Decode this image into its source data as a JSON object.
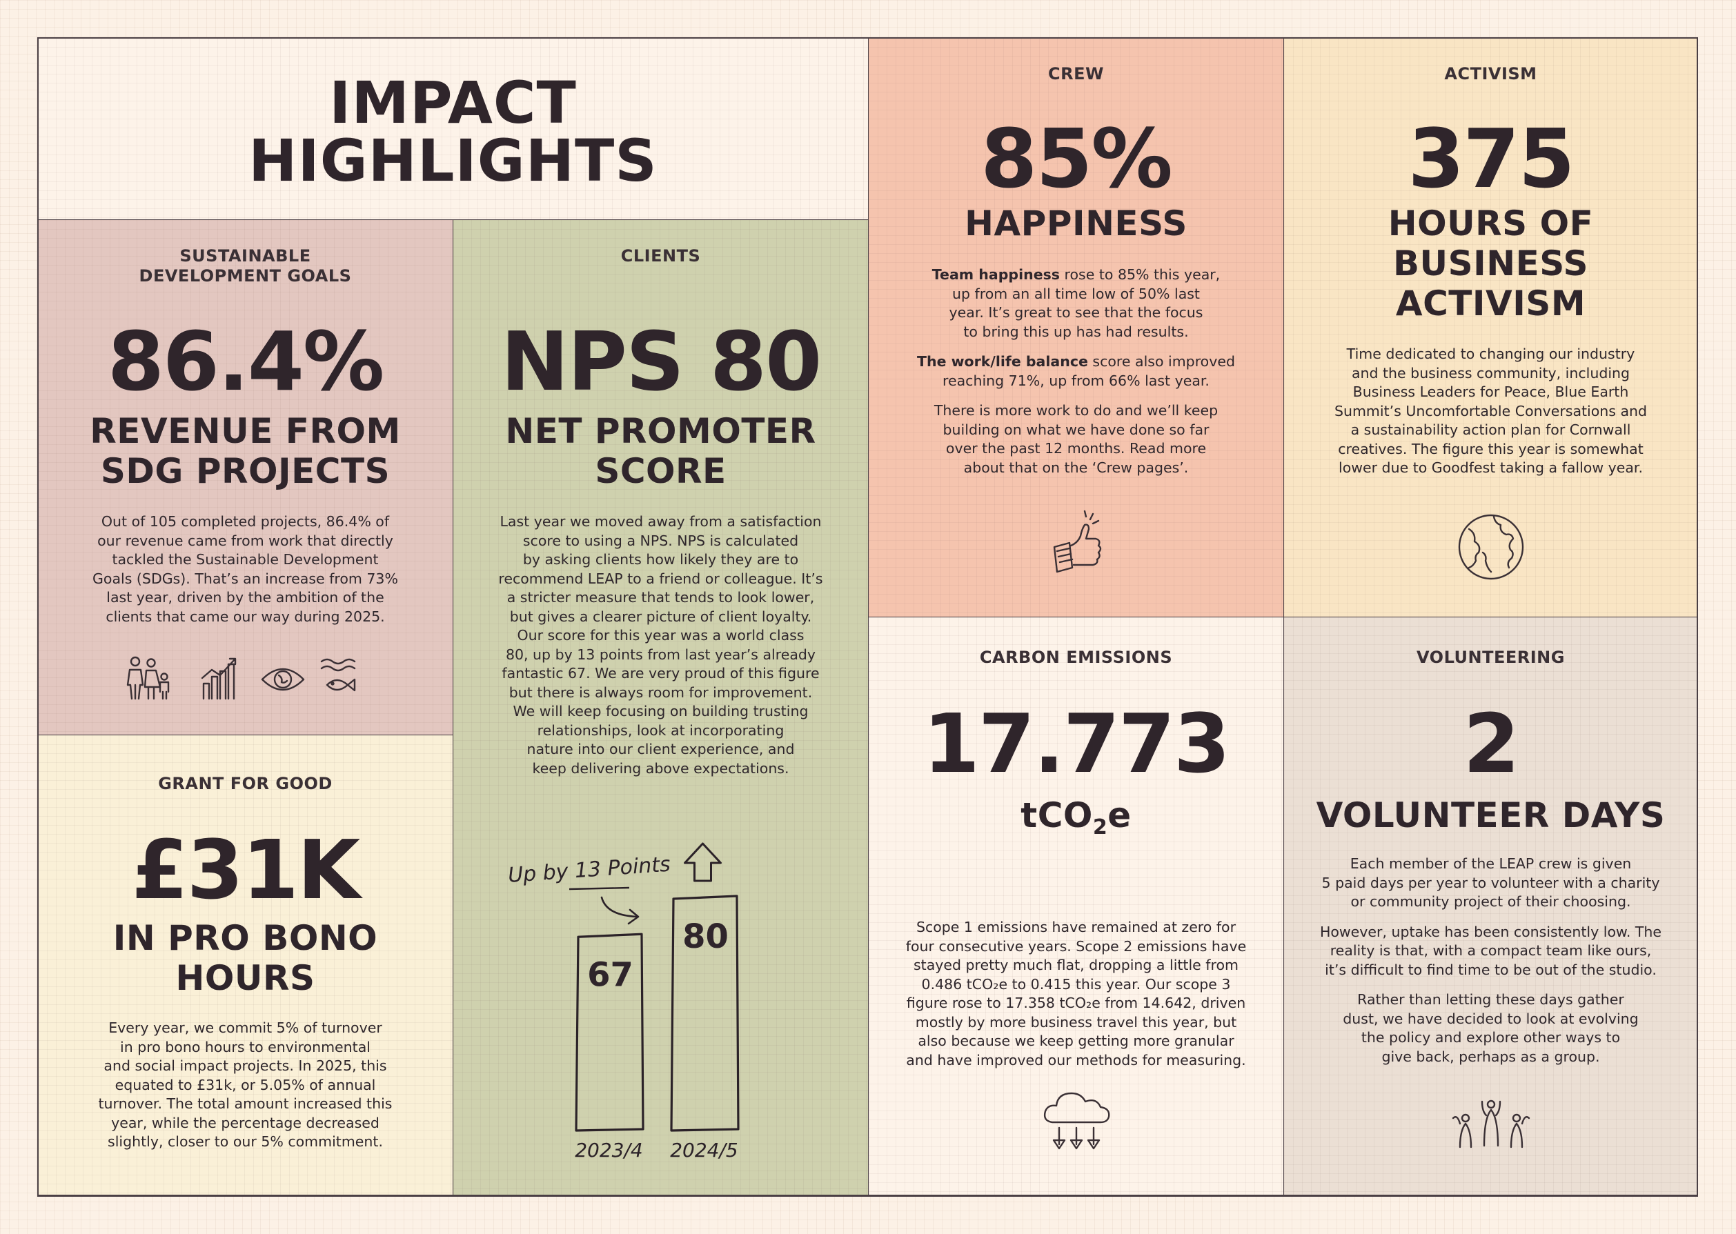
{
  "title": {
    "line1": "IMPACT",
    "line2": "HIGHLIGHTS"
  },
  "sdg": {
    "label_line1": "SUSTAINABLE",
    "label_line2": "DEVELOPMENT GOALS",
    "value": "86.4%",
    "subtitle_line1": "REVENUE FROM",
    "subtitle_line2": "SDG PROJECTS",
    "body": [
      "Out of 105 completed projects, 86.4% of",
      "our revenue came from work that directly",
      "tackled the Sustainable Development",
      "Goals (SDGs). That’s an increase from 73%",
      "last year, driven by the ambition of the",
      "clients that came our way during 2025."
    ],
    "icons": [
      "family-icon",
      "growth-chart-icon",
      "eye-globe-icon",
      "water-fish-icon"
    ]
  },
  "grant": {
    "label": "GRANT FOR GOOD",
    "value": "£31K",
    "subtitle_line1": "IN PRO BONO",
    "subtitle_line2": "HOURS",
    "body": [
      "Every year, we commit 5% of turnover",
      "in pro bono hours to environmental",
      "and social impact projects. In 2025, this",
      "equated to £31k, or 5.05% of annual",
      "turnover. The total amount increased this",
      "year, while the percentage decreased",
      "slightly, closer to our 5% commitment."
    ]
  },
  "clients": {
    "label": "CLIENTS",
    "value": "NPS 80",
    "subtitle_line1": "NET PROMOTER",
    "subtitle_line2": "SCORE",
    "body": [
      "Last year we moved away from a satisfaction",
      "score to using a NPS. NPS is calculated",
      "by asking clients how likely they are to",
      "recommend LEAP to a friend or colleague. It’s",
      "a stricter measure that tends to look lower,",
      "but gives a clearer picture of client loyalty.",
      "Our score for this year was a world class",
      "80, up by 13 points from last year’s already",
      "fantastic 67. We are very proud of this figure",
      "but there is always room for improvement.",
      "We will keep focusing on building trusting",
      "relationships, look at incorporating",
      "nature into our client experience, and",
      "keep delivering above expectations."
    ],
    "annotation": "Up by 13 Points"
  },
  "chart_data": {
    "type": "bar",
    "categories": [
      "2023/4",
      "2024/5"
    ],
    "values": [
      67,
      80
    ],
    "value_labels": [
      "67",
      "80"
    ],
    "annotation": "Up by 13 Points",
    "ylim": [
      0,
      80
    ]
  },
  "crew": {
    "label": "CREW",
    "value": "85%",
    "subtitle": "HAPPINESS",
    "para1_bold": "Team happiness",
    "para1_rest": " rose to 85% this year,",
    "para1_lines": [
      "up from an all time low of 50% last",
      "year. It’s great to see that the focus",
      "to bring this up has had results."
    ],
    "para2_bold": "The work/life balance",
    "para2_rest": " score also improved",
    "para2_lines": [
      "reaching 71%, up from 66% last year."
    ],
    "para3_lines": [
      "There is more work to do and we’ll keep",
      "building on what we have done so far",
      "over the past 12 months. Read more",
      "about that on the ‘Crew pages’."
    ],
    "icon": "thumbs-up-icon"
  },
  "activism": {
    "label": "ACTIVISM",
    "value": "375",
    "subtitle_lines": [
      "HOURS OF",
      "BUSINESS",
      "ACTIVISM"
    ],
    "body": [
      "Time dedicated to changing our industry",
      "and the business community, including",
      "Business Leaders for Peace, Blue Earth",
      "Summit’s Uncomfortable Conversations and",
      "a sustainability action plan for Cornwall",
      "creatives. The figure this year is somewhat",
      "lower due to Goodfest taking a fallow year."
    ],
    "icon": "globe-icon"
  },
  "carbon": {
    "label": "CARBON EMISSIONS",
    "value": "17.773",
    "unit_prefix": "tCO",
    "unit_sub": "2",
    "unit_suffix": "e",
    "body": [
      "Scope 1 emissions have remained at zero for",
      "four consecutive years. Scope 2 emissions have",
      "stayed pretty much flat, dropping a little from",
      "0.486 tCO₂e to 0.415 this year. Our scope 3",
      "figure rose to 17.358 tCO₂e from 14.642, driven",
      "mostly by more business travel this year, but",
      "also because we keep getting more granular",
      "and have improved our methods for measuring."
    ],
    "icon": "cloud-down-icon"
  },
  "volunteering": {
    "label": "VOLUNTEERING",
    "value": "2",
    "subtitle": "VOLUNTEER DAYS",
    "para1": [
      "Each member of the LEAP crew is given",
      "5 paid days per year to volunteer with a charity",
      "or community project of their choosing."
    ],
    "para2": [
      "However, uptake has been consistently low. The",
      "reality is that, with a compact team like ours,",
      "it’s difficult to find time to be out of the studio."
    ],
    "para3": [
      "Rather than letting these days gather",
      "dust, we have decided to look at evolving",
      "the policy and explore other ways to",
      "give back, perhaps as a group."
    ],
    "icon": "people-group-icon"
  }
}
